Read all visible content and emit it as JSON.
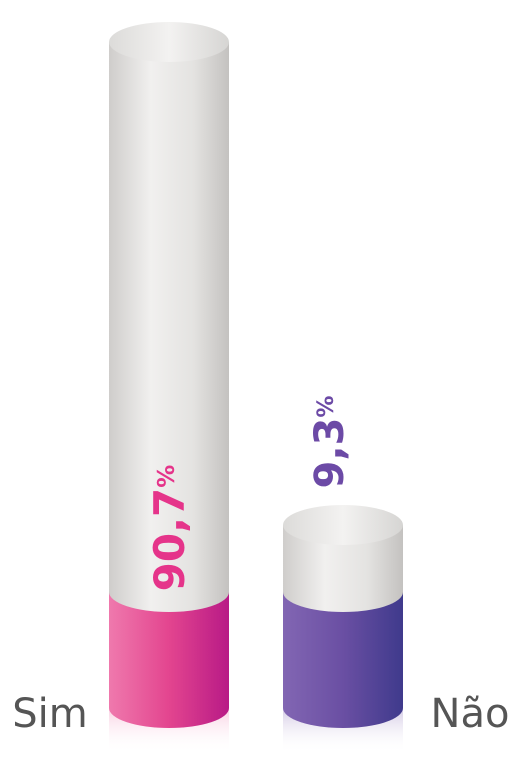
{
  "chart_data": {
    "type": "bar",
    "categories": [
      "Sim",
      "Não"
    ],
    "values": [
      90.7,
      9.3
    ],
    "value_labels": [
      "90,7",
      "9,3"
    ],
    "value_suffix": "%",
    "colors": {
      "Sim": {
        "dark": "#b81a86",
        "mid": "#e3458f",
        "light": "#ef79ad"
      },
      "Não": {
        "dark": "#3f3a8c",
        "mid": "#6a4fa3",
        "light": "#8266b3"
      },
      "cylinder_light": "#f1f0ef",
      "cylinder_shade": "#d2d0ce",
      "cylinder_top": "#e8e7e6",
      "axis_label": "#555555"
    }
  }
}
